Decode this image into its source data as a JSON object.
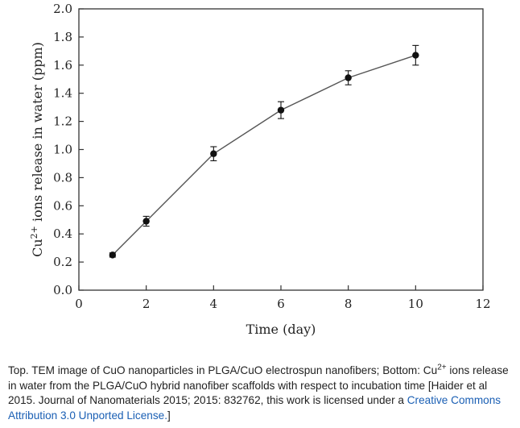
{
  "chart_data": {
    "type": "line",
    "x": [
      1,
      2,
      4,
      6,
      8,
      10
    ],
    "series": [
      {
        "values": [
          0.25,
          0.49,
          0.97,
          1.28,
          1.51,
          1.67
        ],
        "errors": [
          0.015,
          0.035,
          0.05,
          0.06,
          0.05,
          0.07
        ]
      }
    ],
    "xlabel": "Time (day)",
    "ylabel": {
      "prefix": "Cu",
      "sup": "2+",
      "suffix": " ions release in water (ppm)"
    },
    "xlim": [
      0,
      12
    ],
    "ylim": [
      0,
      2.0
    ],
    "xticks": [
      "0",
      "2",
      "4",
      "6",
      "8",
      "10",
      "12"
    ],
    "yticks": [
      "0.0",
      "0.2",
      "0.4",
      "0.6",
      "0.8",
      "1.0",
      "1.2",
      "1.4",
      "1.6",
      "1.8",
      "2.0"
    ],
    "grid": false,
    "colors": {
      "line": "#555555",
      "marker": "#111111",
      "axis": "#333333"
    }
  },
  "caption": {
    "part1": "Top. TEM image of CuO nanoparticles in PLGA/CuO electrospun nanofibers; Bottom: Cu",
    "sup": "2+",
    "part2": " ions release in water from the PLGA/CuO hybrid nanofiber scaffolds with respect to incubation time [Haider et al 2015. Journal of Nanomaterials 2015; 2015: 832762, this work is licensed under a ",
    "link": "Creative Commons Attribution 3.0 Unported License.",
    "end": "]"
  }
}
